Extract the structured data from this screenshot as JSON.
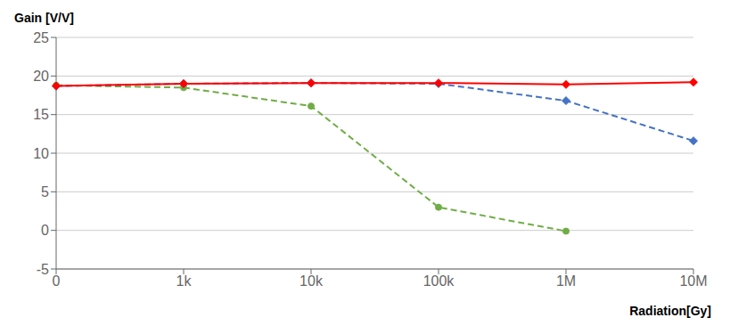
{
  "chart_data": {
    "type": "line",
    "categories": [
      "0",
      "1k",
      "10k",
      "100k",
      "1M",
      "10M"
    ],
    "series": [
      {
        "color": "#70AD47",
        "marker": "circle",
        "line_style": "dashed",
        "values": [
          18.8,
          18.5,
          16.1,
          3.0,
          -0.1,
          null
        ]
      },
      {
        "color": "#4472C4",
        "marker": "diamond",
        "line_style": "dashed",
        "values": [
          18.7,
          19.0,
          19.1,
          19.0,
          16.8,
          11.6
        ]
      },
      {
        "color": "#FF0000",
        "marker": "diamond",
        "line_style": "solid",
        "values": [
          18.7,
          19.0,
          19.1,
          19.1,
          18.9,
          19.2
        ]
      }
    ],
    "xlabel": "Radiation[Gy]",
    "ylabel": "Gain [V/V]",
    "ylim": [
      -5,
      25
    ],
    "yticks": [
      -5,
      0,
      5,
      10,
      15,
      20,
      25
    ],
    "grid": true
  }
}
